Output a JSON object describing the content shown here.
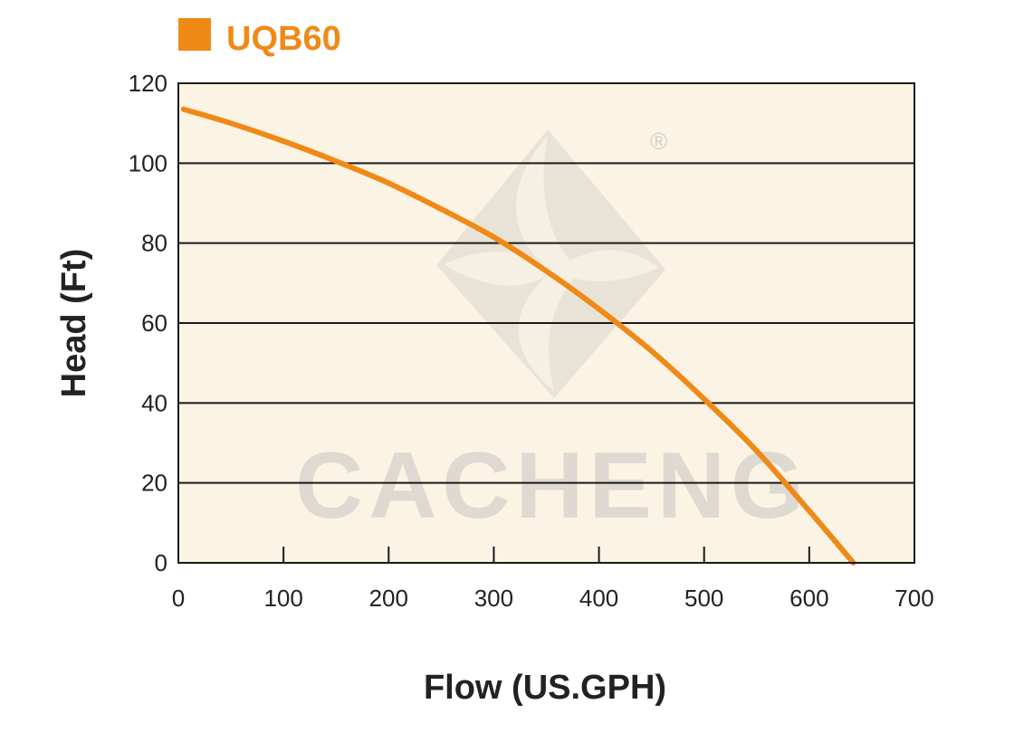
{
  "chart_data": {
    "type": "line",
    "series": [
      {
        "name": "UQB60",
        "color": "#ef8a17",
        "points": [
          [
            5,
            113.5
          ],
          [
            50,
            110
          ],
          [
            100,
            105.5
          ],
          [
            150,
            100.5
          ],
          [
            200,
            95
          ],
          [
            250,
            88.5
          ],
          [
            300,
            81.5
          ],
          [
            350,
            73
          ],
          [
            400,
            63.5
          ],
          [
            450,
            53
          ],
          [
            500,
            41
          ],
          [
            550,
            28
          ],
          [
            600,
            13
          ],
          [
            642,
            0
          ]
        ]
      }
    ],
    "xlabel": "Flow (US.GPH)",
    "ylabel": "Head (Ft)",
    "xlim": [
      0,
      700
    ],
    "ylim": [
      0,
      120
    ],
    "xticks": [
      0,
      100,
      200,
      300,
      400,
      500,
      600,
      700
    ],
    "yticks": [
      0,
      20,
      40,
      60,
      80,
      100,
      120
    ],
    "grid": "horizontal",
    "legend_position": "top-left",
    "plot_background": "#fbf3e4",
    "grid_color": "#1a1a1a",
    "watermark_text": "CACHENG",
    "watermark_mark": "®"
  }
}
